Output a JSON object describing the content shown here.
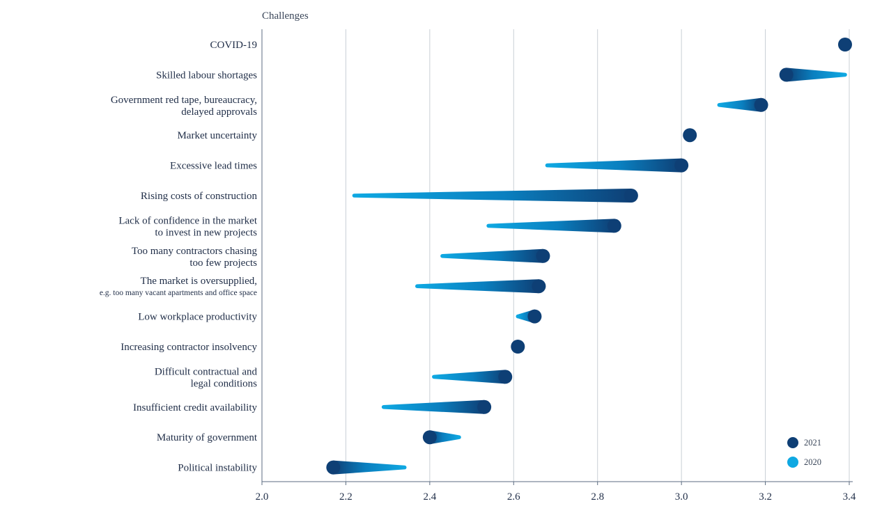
{
  "chart_data": {
    "type": "dumbbell",
    "title": "",
    "y_axis_title": "Challenges",
    "xlim": [
      2.0,
      3.4
    ],
    "x_ticks": [
      2.0,
      2.2,
      2.4,
      2.6,
      2.8,
      3.0,
      3.2,
      3.4
    ],
    "x_tick_labels": [
      "2.0",
      "2.2",
      "2.4",
      "2.6",
      "2.8",
      "3.0",
      "3.2",
      "3.4"
    ],
    "grid": "vertical",
    "legend_position": "bottom-right",
    "series": [
      {
        "name": "2021",
        "color": "#0e3f75"
      },
      {
        "name": "2020",
        "color": "#0fa8e2"
      }
    ],
    "categories": [
      {
        "lines": [
          "COVID-19"
        ],
        "v2021": 3.39,
        "v2020": null
      },
      {
        "lines": [
          "Skilled labour shortages"
        ],
        "v2021": 3.25,
        "v2020": 3.39
      },
      {
        "lines": [
          "Government red tape, bureaucracy,",
          "delayed approvals"
        ],
        "v2021": 3.19,
        "v2020": 3.09
      },
      {
        "lines": [
          "Market uncertainty"
        ],
        "v2021": 3.02,
        "v2020": null
      },
      {
        "lines": [
          "Excessive lead times"
        ],
        "v2021": 3.0,
        "v2020": 2.68
      },
      {
        "lines": [
          "Rising costs of construction"
        ],
        "v2021": 2.88,
        "v2020": 2.22
      },
      {
        "lines": [
          "Lack of confidence in the market",
          "to invest in new projects"
        ],
        "v2021": 2.84,
        "v2020": 2.54
      },
      {
        "lines": [
          "Too many contractors chasing",
          "too few projects"
        ],
        "v2021": 2.67,
        "v2020": 2.43
      },
      {
        "lines": [
          "The market is oversupplied,",
          "e.g. too many vacant apartments and office space"
        ],
        "small_second_line": true,
        "v2021": 2.66,
        "v2020": 2.37
      },
      {
        "lines": [
          "Low workplace productivity"
        ],
        "v2021": 2.65,
        "v2020": 2.61
      },
      {
        "lines": [
          "Increasing contractor insolvency"
        ],
        "v2021": 2.61,
        "v2020": null
      },
      {
        "lines": [
          "Difficult contractual and",
          "legal conditions"
        ],
        "v2021": 2.58,
        "v2020": 2.41
      },
      {
        "lines": [
          "Insufficient credit availability"
        ],
        "v2021": 2.53,
        "v2020": 2.29
      },
      {
        "lines": [
          "Maturity of government"
        ],
        "v2021": 2.4,
        "v2020": 2.47
      },
      {
        "lines": [
          "Political instability"
        ],
        "v2021": 2.17,
        "v2020": 2.34
      }
    ]
  }
}
